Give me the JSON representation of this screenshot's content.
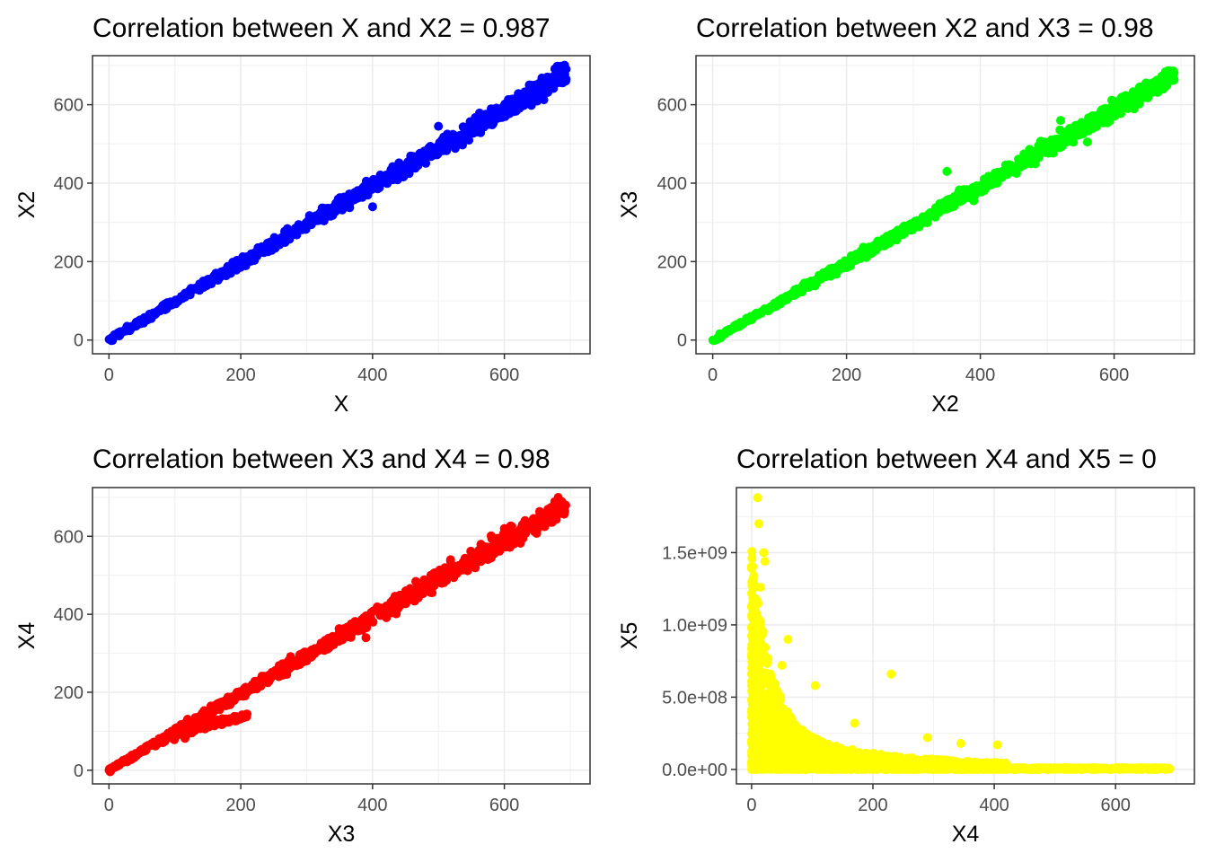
{
  "chart_data": [
    {
      "type": "scatter",
      "title": "Correlation between X and X2 = 0.987",
      "xlabel": "X",
      "ylabel": "X2",
      "color": "#0000ff",
      "xlim": [
        -25,
        730
      ],
      "ylim": [
        -35,
        725
      ],
      "xticks": [
        0,
        200,
        400,
        600
      ],
      "yticks": [
        0,
        200,
        400,
        600
      ],
      "ytick_labels": [
        "0",
        "200",
        "400",
        "600"
      ],
      "grid": true,
      "shape": "linear",
      "x_max": 695,
      "slope": 0.98,
      "spread": 16,
      "outliers": [
        [
          400,
          340
        ],
        [
          500,
          545
        ],
        [
          690,
          675
        ]
      ]
    },
    {
      "type": "scatter",
      "title": "Correlation between X2 and X3 = 0.98",
      "xlabel": "X2",
      "ylabel": "X3",
      "color": "#00ff00",
      "xlim": [
        -25,
        720
      ],
      "ylim": [
        -35,
        725
      ],
      "xticks": [
        0,
        200,
        400,
        600
      ],
      "yticks": [
        0,
        200,
        400,
        600
      ],
      "ytick_labels": [
        "0",
        "200",
        "400",
        "600"
      ],
      "grid": true,
      "shape": "linear",
      "x_max": 690,
      "slope": 0.98,
      "spread": 14,
      "outliers": [
        [
          390,
          355
        ],
        [
          520,
          560
        ],
        [
          560,
          505
        ],
        [
          350,
          430
        ]
      ]
    },
    {
      "type": "scatter",
      "title": "Correlation between X3 and X4 = 0.98",
      "xlabel": "X3",
      "ylabel": "X4",
      "color": "#ff0000",
      "xlim": [
        -25,
        730
      ],
      "ylim": [
        -35,
        725
      ],
      "xticks": [
        0,
        200,
        400,
        600
      ],
      "yticks": [
        0,
        200,
        400,
        600
      ],
      "ytick_labels": [
        "0",
        "200",
        "400",
        "600"
      ],
      "grid": true,
      "shape": "linear-branch",
      "x_max": 695,
      "slope": 0.98,
      "spread": 16,
      "branch": {
        "x_start": 100,
        "x_end": 210,
        "y_start": 95,
        "y_end": 140
      },
      "outliers": [
        [
          390,
          340
        ],
        [
          600,
          620
        ],
        [
          690,
          675
        ]
      ]
    },
    {
      "type": "scatter",
      "title": "Correlation between X4 and X5 = 0",
      "xlabel": "X4",
      "ylabel": "X5",
      "color": "#ffff00",
      "xlim": [
        -25,
        730
      ],
      "ylim": [
        -100000000,
        1950000000
      ],
      "xticks": [
        0,
        200,
        400,
        600
      ],
      "yticks": [
        0,
        500000000,
        1000000000,
        1500000000
      ],
      "ytick_labels": [
        "0.0e+00",
        "5.0e+08",
        "1.0e+09",
        "1.5e+09"
      ],
      "grid": true,
      "shape": "decay",
      "x_max": 690,
      "outliers": [
        [
          10,
          1880000000
        ],
        [
          12,
          1700000000
        ],
        [
          20,
          1500000000
        ],
        [
          22,
          1440000000
        ],
        [
          15,
          1260000000
        ],
        [
          60,
          900000000
        ],
        [
          50,
          720000000
        ],
        [
          105,
          580000000
        ],
        [
          230,
          660000000
        ],
        [
          290,
          220000000
        ],
        [
          345,
          180000000
        ],
        [
          405,
          170000000
        ],
        [
          170,
          320000000
        ]
      ]
    }
  ]
}
